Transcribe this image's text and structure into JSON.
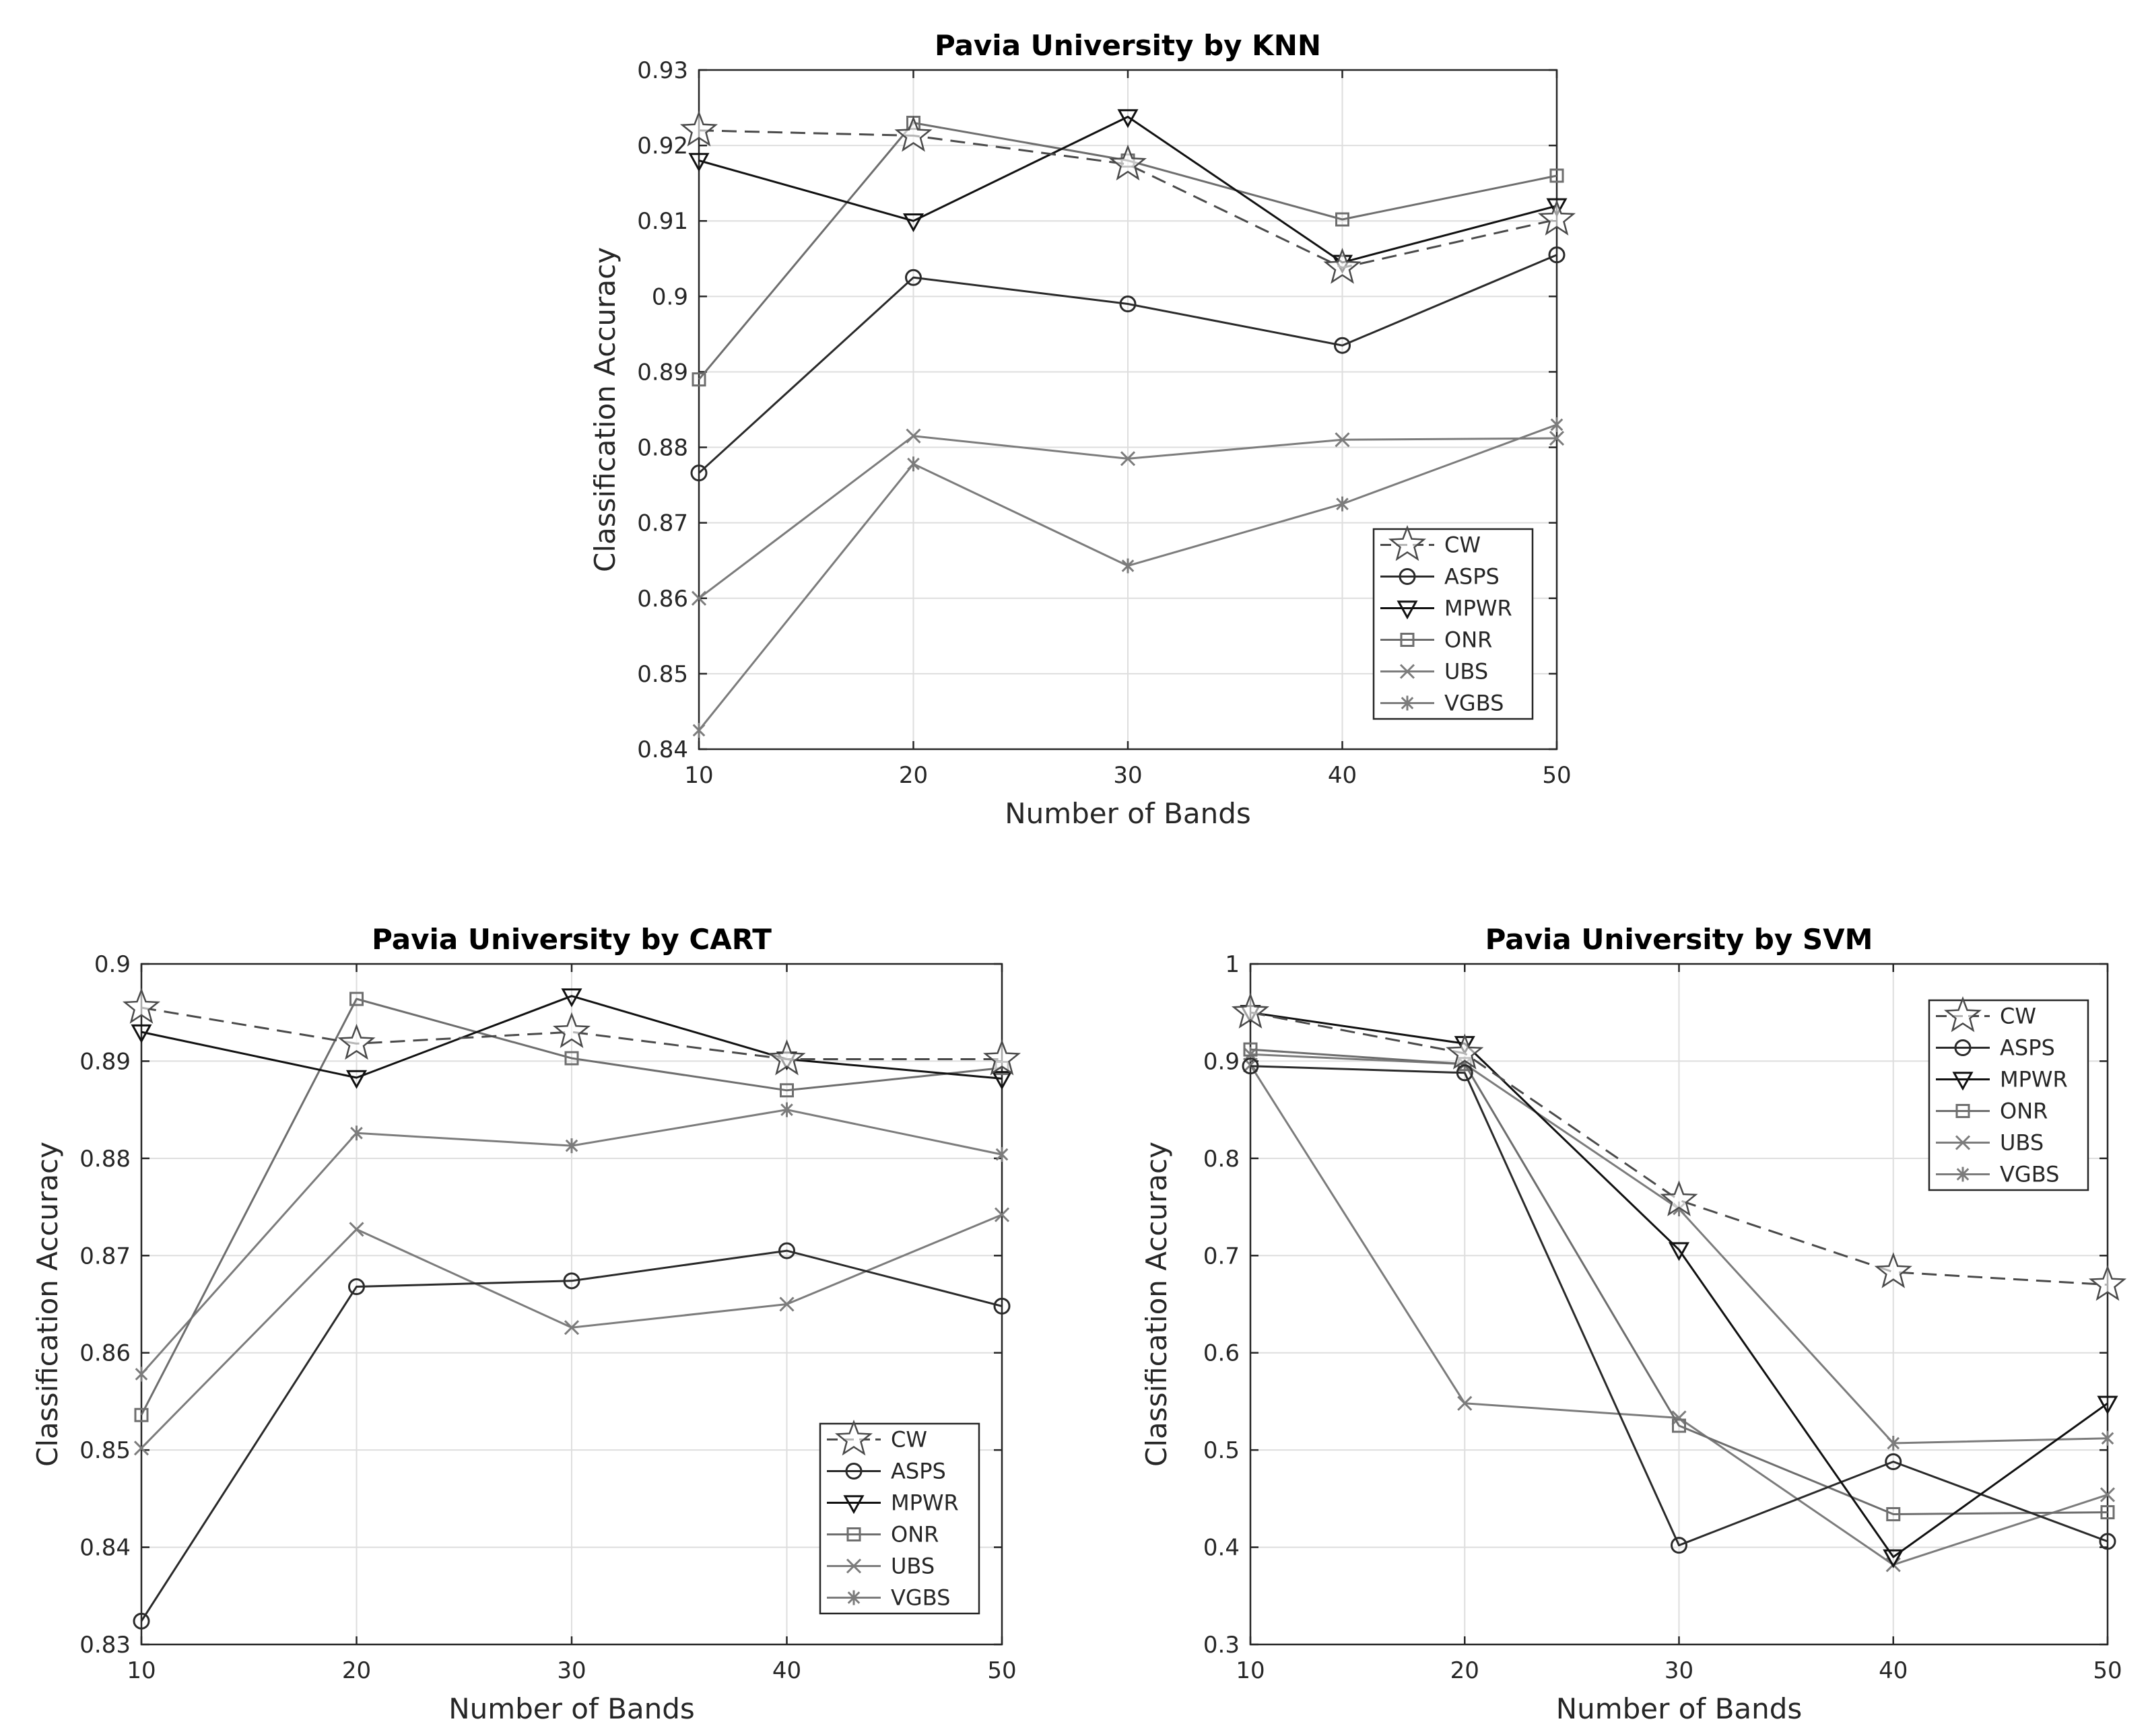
{
  "chart_data": [
    {
      "type": "line",
      "title": "Pavia University by KNN",
      "xlabel": "Number of Bands",
      "ylabel": "Classification Accuracy",
      "x": [
        10,
        20,
        30,
        40,
        50
      ],
      "xlim": [
        10,
        50
      ],
      "ylim": [
        0.84,
        0.93
      ],
      "xticks": [
        "10",
        "20",
        "30",
        "40",
        "50"
      ],
      "yticks": [
        "0.84",
        "0.85",
        "0.86",
        "0.87",
        "0.88",
        "0.89",
        "0.9",
        "0.91",
        "0.92",
        "0.93"
      ],
      "grid": true,
      "legend_position": "bottom-right",
      "series": [
        {
          "name": "CW",
          "values": [
            0.922,
            0.9213,
            0.9175,
            0.9038,
            0.9102
          ]
        },
        {
          "name": "ASPS",
          "values": [
            0.8766,
            0.9025,
            0.899,
            0.8935,
            0.9055
          ]
        },
        {
          "name": "MPWR",
          "values": [
            0.918,
            0.91,
            0.9238,
            0.9045,
            0.912
          ]
        },
        {
          "name": "ONR",
          "values": [
            0.889,
            0.923,
            0.918,
            0.9102,
            0.916
          ]
        },
        {
          "name": "UBS",
          "values": [
            0.86,
            0.8815,
            0.8785,
            0.881,
            0.8812
          ]
        },
        {
          "name": "VGBS",
          "values": [
            0.8425,
            0.8778,
            0.8643,
            0.8725,
            0.883
          ]
        }
      ]
    },
    {
      "type": "line",
      "title": "Pavia University by CART",
      "xlabel": "Number of Bands",
      "ylabel": "Classification Accuracy",
      "x": [
        10,
        20,
        30,
        40,
        50
      ],
      "xlim": [
        10,
        50
      ],
      "ylim": [
        0.83,
        0.9
      ],
      "xticks": [
        "10",
        "20",
        "30",
        "40",
        "50"
      ],
      "yticks": [
        "0.83",
        "0.84",
        "0.85",
        "0.86",
        "0.87",
        "0.88",
        "0.89",
        "0.9"
      ],
      "grid": true,
      "legend_position": "bottom-right",
      "series": [
        {
          "name": "CW",
          "values": [
            0.8955,
            0.8918,
            0.893,
            0.8902,
            0.8902
          ]
        },
        {
          "name": "ASPS",
          "values": [
            0.8324,
            0.8668,
            0.8674,
            0.8705,
            0.8648
          ]
        },
        {
          "name": "MPWR",
          "values": [
            0.893,
            0.8883,
            0.8967,
            0.8902,
            0.8882
          ]
        },
        {
          "name": "ONR",
          "values": [
            0.8536,
            0.8964,
            0.8903,
            0.887,
            0.8893
          ]
        },
        {
          "name": "UBS",
          "values": [
            0.8502,
            0.8727,
            0.8626,
            0.865,
            0.8742
          ]
        },
        {
          "name": "VGBS",
          "values": [
            0.8578,
            0.8826,
            0.8813,
            0.885,
            0.8804
          ]
        }
      ]
    },
    {
      "type": "line",
      "title": "Pavia University by SVM",
      "xlabel": "Number of Bands",
      "ylabel": "Classification Accuracy",
      "x": [
        10,
        20,
        30,
        40,
        50
      ],
      "xlim": [
        10,
        50
      ],
      "ylim": [
        0.3,
        1.0
      ],
      "xticks": [
        "10",
        "20",
        "30",
        "40",
        "50"
      ],
      "yticks": [
        "0.3",
        "0.4",
        "0.5",
        "0.6",
        "0.7",
        "0.8",
        "0.9",
        "1"
      ],
      "grid": true,
      "legend_position": "top-right",
      "series": [
        {
          "name": "CW",
          "values": [
            0.95,
            0.908,
            0.757,
            0.683,
            0.67
          ]
        },
        {
          "name": "ASPS",
          "values": [
            0.895,
            0.888,
            0.402,
            0.488,
            0.406
          ]
        },
        {
          "name": "MPWR",
          "values": [
            0.95,
            0.918,
            0.706,
            0.39,
            0.548
          ]
        },
        {
          "name": "ONR",
          "values": [
            0.912,
            0.897,
            0.525,
            0.434,
            0.436
          ]
        },
        {
          "name": "UBS",
          "values": [
            0.896,
            0.548,
            0.533,
            0.382,
            0.454
          ]
        },
        {
          "name": "VGBS",
          "values": [
            0.907,
            0.897,
            0.748,
            0.507,
            0.512
          ]
        }
      ]
    }
  ]
}
